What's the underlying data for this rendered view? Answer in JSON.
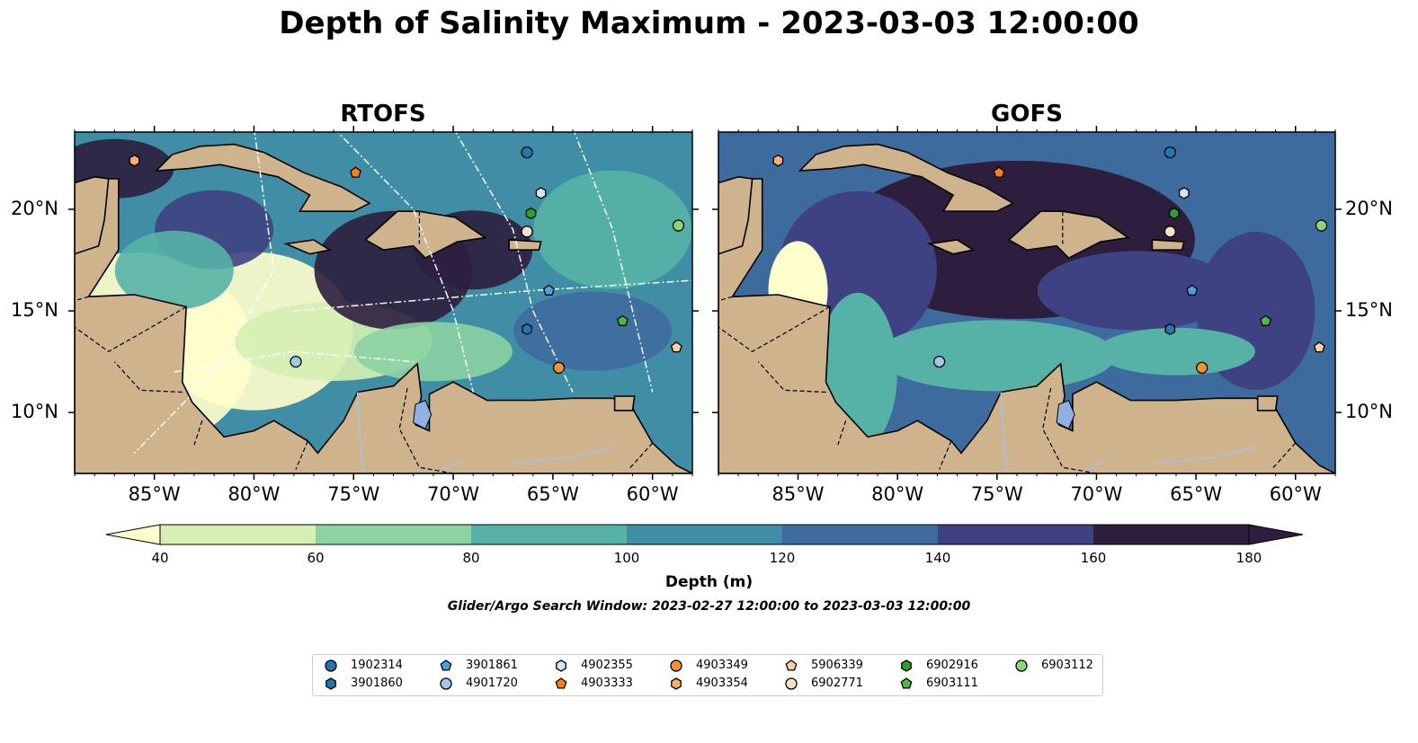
{
  "suptitle": "Depth of Salinity Maximum - 2023-03-03 12:00:00",
  "panels": [
    {
      "title": "RTOFS"
    },
    {
      "title": "GOFS"
    }
  ],
  "axes": {
    "lon_range": [
      -89.0,
      -58.0
    ],
    "lat_range": [
      7.0,
      23.8
    ],
    "x_ticks": [
      "85°W",
      "80°W",
      "75°W",
      "70°W",
      "65°W",
      "60°W"
    ],
    "y_ticks": [
      "20°N",
      "15°N",
      "10°N"
    ]
  },
  "colorbar": {
    "label": "Depth (m)",
    "ticks": [
      "40",
      "60",
      "80",
      "100",
      "120",
      "140",
      "160",
      "180"
    ],
    "colors": [
      "#d6efb3",
      "#8bd3a3",
      "#56b2a6",
      "#3f8ea5",
      "#3e6b9e",
      "#3f4282",
      "#2d1e3e"
    ],
    "extend_low": "#ffffcc",
    "extend_high": "#2d1e3e"
  },
  "search_window": "Glider/Argo Search Window: 2023-02-27 12:00:00 to 2023-03-03 12:00:00",
  "colors": {
    "land": "#cfb38c",
    "lake": "#8fb2e3",
    "river": "#a9c1e3"
  },
  "floats": [
    {
      "id": "1902314",
      "marker": "circle",
      "color": "#1f77b4",
      "lon": -66.3,
      "lat": 22.8
    },
    {
      "id": "3901860",
      "marker": "hexagon",
      "color": "#1f77b4",
      "lon": -66.3,
      "lat": 14.1
    },
    {
      "id": "3901861",
      "marker": "pentagon",
      "color": "#4fa0e0",
      "lon": -65.2,
      "lat": 16.0
    },
    {
      "id": "4901720",
      "marker": "circle",
      "color": "#9ec9e8",
      "lon": -77.9,
      "lat": 12.5
    },
    {
      "id": "4902355",
      "marker": "hexagon",
      "color": "#d2e6f5",
      "lon": -65.6,
      "lat": 20.8
    },
    {
      "id": "4903333",
      "marker": "pentagon",
      "color": "#ff7f0e",
      "lon": -74.9,
      "lat": 21.8
    },
    {
      "id": "4903349",
      "marker": "circle",
      "color": "#f59232",
      "lon": -64.7,
      "lat": 12.2
    },
    {
      "id": "4903354",
      "marker": "hexagon",
      "color": "#fdae6b",
      "lon": -86.0,
      "lat": 22.4
    },
    {
      "id": "5906339",
      "marker": "pentagon",
      "color": "#fdd0a2",
      "lon": -58.8,
      "lat": 13.2
    },
    {
      "id": "6902771",
      "marker": "circle",
      "color": "#fde0c8",
      "lon": -66.3,
      "lat": 18.9
    },
    {
      "id": "6902916",
      "marker": "hexagon",
      "color": "#2ca02c",
      "lon": -66.1,
      "lat": 19.8
    },
    {
      "id": "6903111",
      "marker": "pentagon",
      "color": "#4cb84c",
      "lon": -61.5,
      "lat": 14.5
    },
    {
      "id": "6903112",
      "marker": "circle",
      "color": "#8ad67a",
      "lon": -58.7,
      "lat": 19.2
    }
  ]
}
